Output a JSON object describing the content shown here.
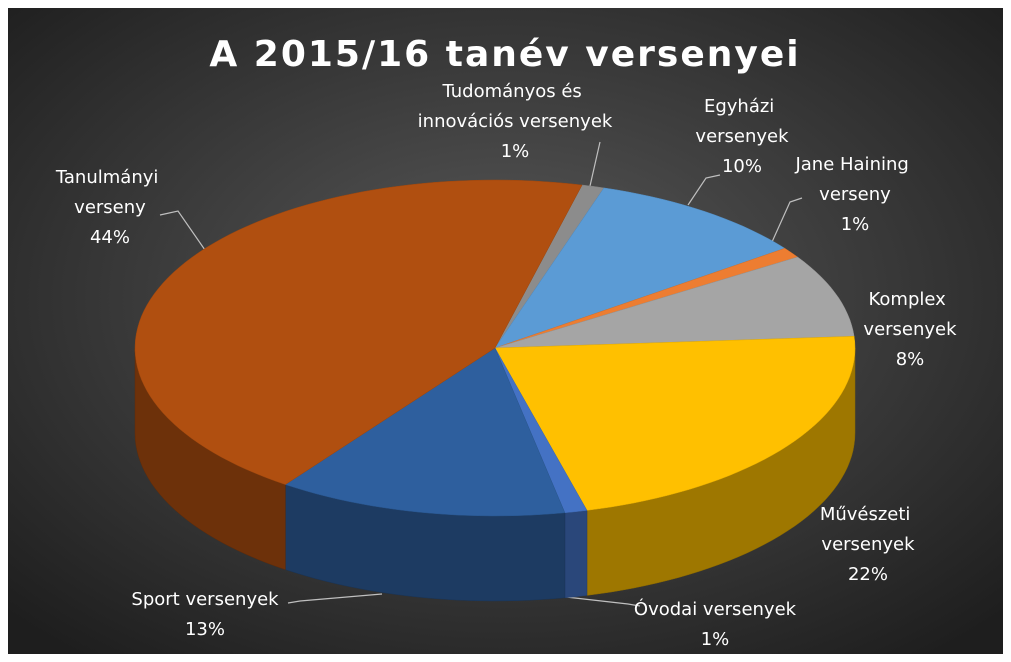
{
  "chart_data": {
    "type": "pie3d",
    "title": "A 2015/16 tanév versenyei",
    "categories": [
      "Tudományos és innovációs versenyek",
      "Egyházi versenyek",
      "Jane Haining verseny",
      "Komplex versenyek",
      "Művészeti versenyek",
      "Óvodai versenyek",
      "Sport versenyek",
      "Tanulmányi verseny"
    ],
    "values": [
      1,
      10,
      1,
      8,
      22,
      1,
      13,
      44
    ],
    "value_labels": [
      "1%",
      "10%",
      "1%",
      "8%",
      "22%",
      "1%",
      "13%",
      "44%"
    ],
    "colors": [
      "#8c8c8c",
      "#5b9bd5",
      "#ed7d31",
      "#a5a5a5",
      "#ffc000",
      "#4472c4",
      "#2e5f9e",
      "#b04f10"
    ]
  }
}
